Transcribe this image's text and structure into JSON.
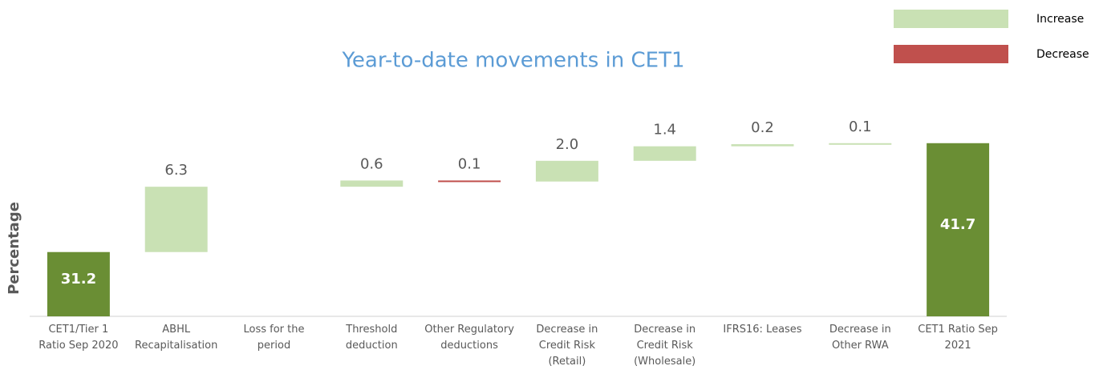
{
  "chart_data": {
    "type": "waterfall",
    "title": "Year-to-date movements in CET1",
    "y_label": "Percentage",
    "categories": [
      "CET1/Tier 1 Ratio Sep 2020",
      "ABHL Recapitalisation",
      "Loss for the period",
      "Threshold deduction",
      "Other Regulatory deductions",
      "Decrease in Credit Risk (Retail)",
      "Decrease in Credit Risk (Wholesale)",
      "IFRS16: Leases",
      "Decrease in Other RWA",
      "CET1 Ratio Sep 2021"
    ],
    "values": [
      31.2,
      6.3,
      null,
      0.6,
      -0.1,
      2.0,
      1.4,
      0.2,
      0.1,
      41.7
    ],
    "value_labels": [
      "31.2",
      "6.3",
      null,
      "0.6",
      "0.1",
      "2.0",
      "1.4",
      "0.2",
      "0.1",
      "41.7"
    ],
    "total_color": "#6a8e34",
    "legend": [
      {
        "name": "Increase",
        "color": "#c9e1b4"
      },
      {
        "name": "Decrease",
        "color": "#c0504d"
      }
    ],
    "ylim": [
      25,
      44
    ]
  }
}
